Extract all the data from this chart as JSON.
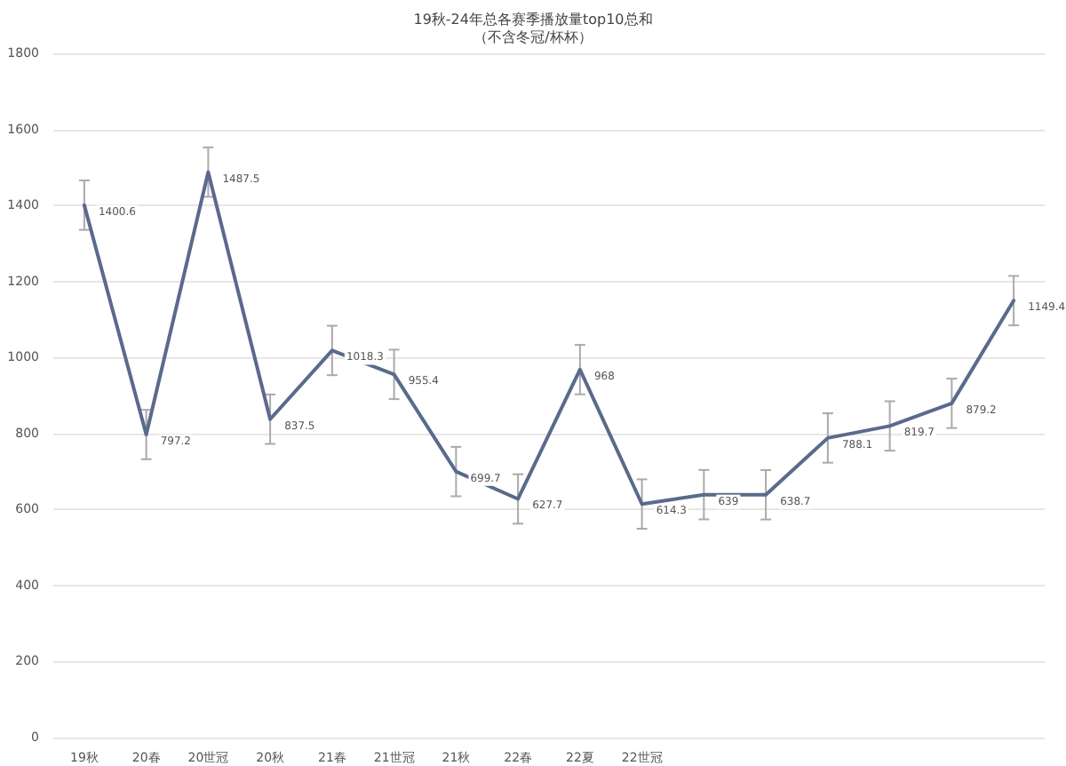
{
  "chart_data": {
    "type": "line",
    "title": "19秋-24年总各赛季播放量top10总和",
    "subtitle": "（不含冬冠/杯杯）",
    "categories": [
      "19秋",
      "20春",
      "20世冠",
      "20秋",
      "21春",
      "21世冠",
      "21秋",
      "22春",
      "22夏",
      "22世冠",
      null,
      null,
      null,
      null,
      null,
      null
    ],
    "series": [
      {
        "color": "#5a6a8c",
        "values": [
          1400.6,
          797.2,
          1487.5,
          837.5,
          1018.3,
          955.4,
          699.7,
          627.7,
          968,
          614.3,
          639,
          638.7,
          788.1,
          819.7,
          879.2,
          1149.4
        ],
        "errors": [
          65,
          65,
          65,
          65,
          65,
          65,
          65,
          65,
          65,
          65,
          65,
          65,
          65,
          65,
          65,
          65
        ]
      }
    ],
    "data_labels": true,
    "ylim": [
      0,
      1800
    ],
    "yticks": [
      0,
      200,
      400,
      600,
      800,
      1000,
      1200,
      1400,
      1600,
      1800
    ],
    "grid": "y",
    "marker": "none",
    "line_style": "solid"
  }
}
